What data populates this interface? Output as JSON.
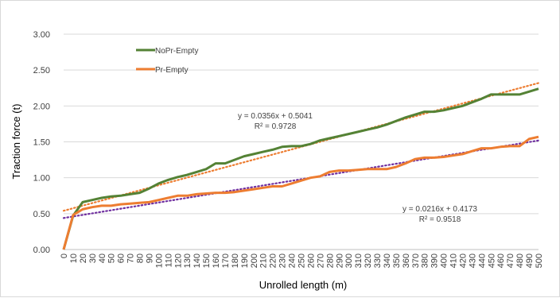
{
  "chart_data": {
    "type": "line",
    "xlabel": "Unrolled length (m)",
    "ylabel": "Traction force (t)",
    "xlim": [
      0,
      500
    ],
    "ylim": [
      0,
      3
    ],
    "x_ticks": [
      0,
      10,
      20,
      30,
      40,
      50,
      60,
      70,
      80,
      90,
      100,
      110,
      120,
      130,
      140,
      150,
      160,
      170,
      180,
      190,
      200,
      210,
      220,
      230,
      240,
      250,
      260,
      270,
      280,
      290,
      300,
      310,
      320,
      330,
      340,
      350,
      360,
      370,
      380,
      390,
      400,
      410,
      420,
      430,
      440,
      450,
      460,
      470,
      480,
      490,
      500
    ],
    "y_ticks": [
      0,
      0.5,
      1.0,
      1.5,
      2.0,
      2.5,
      3.0
    ],
    "y_tick_labels": [
      "0.00",
      "0.50",
      "1.00",
      "1.50",
      "2.00",
      "2.50",
      "3.00"
    ],
    "grid": "horizontal",
    "legend_position": "top-left",
    "x": [
      0,
      10,
      20,
      30,
      40,
      50,
      60,
      70,
      80,
      90,
      100,
      110,
      120,
      130,
      140,
      150,
      160,
      170,
      180,
      190,
      200,
      210,
      220,
      230,
      240,
      250,
      260,
      270,
      280,
      290,
      300,
      310,
      320,
      330,
      340,
      350,
      360,
      370,
      380,
      390,
      400,
      410,
      420,
      430,
      440,
      450,
      460,
      470,
      480,
      490,
      500
    ],
    "series": [
      {
        "name": "NoPr-Empty",
        "color": "#548235",
        "values": [
          0,
          0.47,
          0.66,
          0.69,
          0.72,
          0.74,
          0.75,
          0.77,
          0.79,
          0.85,
          0.92,
          0.97,
          1.01,
          1.04,
          1.08,
          1.12,
          1.2,
          1.2,
          1.25,
          1.3,
          1.33,
          1.36,
          1.39,
          1.43,
          1.44,
          1.44,
          1.47,
          1.52,
          1.55,
          1.58,
          1.61,
          1.64,
          1.67,
          1.7,
          1.74,
          1.79,
          1.84,
          1.88,
          1.92,
          1.92,
          1.94,
          1.97,
          2.0,
          2.05,
          2.1,
          2.16,
          2.16,
          2.16,
          2.16,
          2.2,
          2.24
        ]
      },
      {
        "name": "Pr-Empty",
        "color": "#ED7D31",
        "values": [
          0,
          0.48,
          0.56,
          0.59,
          0.61,
          0.61,
          0.63,
          0.64,
          0.65,
          0.66,
          0.69,
          0.72,
          0.75,
          0.75,
          0.77,
          0.78,
          0.79,
          0.79,
          0.8,
          0.82,
          0.84,
          0.86,
          0.88,
          0.88,
          0.92,
          0.96,
          1.0,
          1.02,
          1.08,
          1.1,
          1.1,
          1.11,
          1.12,
          1.12,
          1.12,
          1.15,
          1.2,
          1.26,
          1.28,
          1.28,
          1.29,
          1.31,
          1.33,
          1.37,
          1.41,
          1.41,
          1.43,
          1.44,
          1.44,
          1.54,
          1.57
        ]
      }
    ],
    "trendlines": [
      {
        "of": "NoPr-Empty",
        "slope": 0.0356,
        "intercept": 0.5041,
        "color": "#ED7D31",
        "equation": "y = 0.0356x + 0.5041",
        "r2_label": "R² = 0.9728"
      },
      {
        "of": "Pr-Empty",
        "slope": 0.0216,
        "intercept": 0.4173,
        "color": "#7030A0",
        "equation": "y = 0.0216x + 0.4173",
        "r2_label": "R² = 0.9518"
      }
    ]
  }
}
